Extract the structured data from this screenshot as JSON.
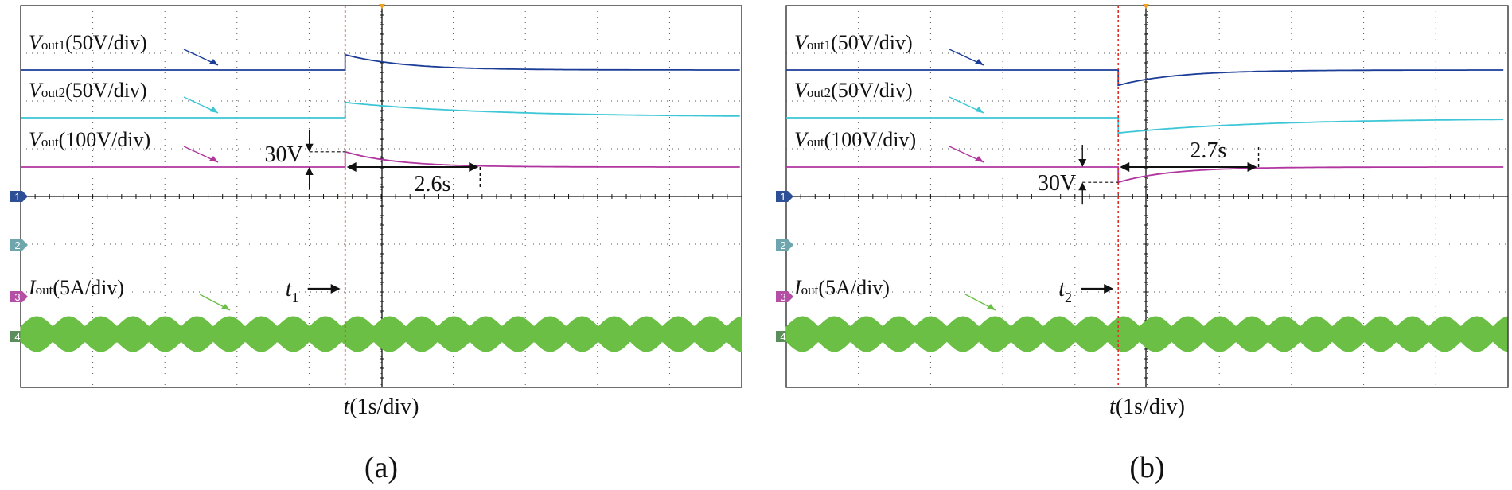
{
  "chart_data": [
    {
      "panel": "a",
      "type": "line",
      "caption": "(a)",
      "x_label_var": "t",
      "x_label_unit": "(1s/div)",
      "event_marker": {
        "label": "t",
        "subscript": "1"
      },
      "x_divisions": 10,
      "event_div": 4.5,
      "series": [
        {
          "name": "Vout1",
          "label_main": "V",
          "label_sub": "out1",
          "label_scale": "(50V/div)",
          "color": "#1c3d97"
        },
        {
          "name": "Vout2",
          "label_main": "V",
          "label_sub": "out2",
          "label_scale": "(50V/div)",
          "color": "#3cc6d6"
        },
        {
          "name": "Vout",
          "label_main": "V",
          "label_sub": "out",
          "label_scale": "(100V/div)",
          "color": "#b0359e"
        },
        {
          "name": "Iout",
          "label_main": "I",
          "label_sub": "out",
          "label_scale": "(5A/div)",
          "color": "#6abf44"
        }
      ],
      "step": {
        "vout1_jump_div": 0.32,
        "vout2_jump_div": 0.32,
        "vout_jump_div": 0.32,
        "direction": "up"
      },
      "annotations": {
        "voltage_jump": "30V",
        "settling_time": "2.6s",
        "settling_div": 2.6
      },
      "channel_markers": [
        "1",
        "2",
        "3",
        "4"
      ]
    },
    {
      "panel": "b",
      "type": "line",
      "caption": "(b)",
      "x_label_var": "t",
      "x_label_unit": "(1s/div)",
      "event_marker": {
        "label": "t",
        "subscript": "2"
      },
      "x_divisions": 10,
      "event_div": 4.6,
      "series": [
        {
          "name": "Vout1",
          "label_main": "V",
          "label_sub": "out1",
          "label_scale": "(50V/div)",
          "color": "#1c3d97"
        },
        {
          "name": "Vout2",
          "label_main": "V",
          "label_sub": "out2",
          "label_scale": "(50V/div)",
          "color": "#3cc6d6"
        },
        {
          "name": "Vout",
          "label_main": "V",
          "label_sub": "out",
          "label_scale": "(100V/div)",
          "color": "#b0359e"
        },
        {
          "name": "Iout",
          "label_main": "I",
          "label_sub": "out",
          "label_scale": "(5A/div)",
          "color": "#6abf44"
        }
      ],
      "step": {
        "vout1_jump_div": 0.32,
        "vout2_jump_div": 0.32,
        "vout_jump_div": 0.32,
        "direction": "down"
      },
      "annotations": {
        "voltage_jump": "30V",
        "settling_time": "2.7s",
        "settling_div": 2.7
      },
      "channel_markers": [
        "1",
        "2",
        "3",
        "4"
      ]
    }
  ]
}
